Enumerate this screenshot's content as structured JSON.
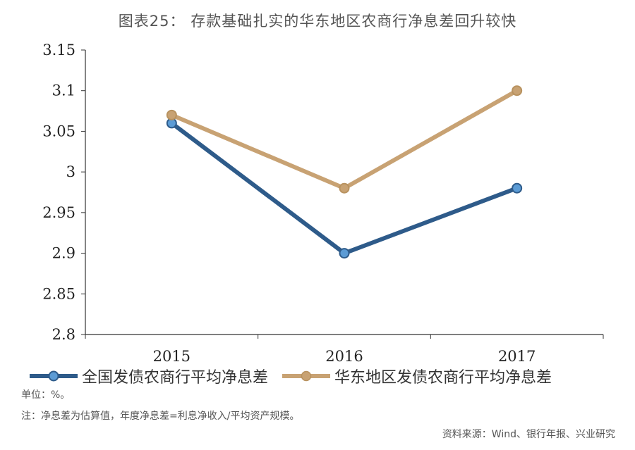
{
  "title": "图表25：  存款基础扎实的华东地区农商行净息差回升较快",
  "chart_data": {
    "type": "line",
    "categories": [
      "2015",
      "2016",
      "2017"
    ],
    "series": [
      {
        "name": "全国发债农商行平均净息差",
        "values": [
          3.06,
          2.9,
          2.98
        ],
        "color": "#2e5b8a"
      },
      {
        "name": "华东地区发债农商行平均净息差",
        "values": [
          3.07,
          2.98,
          3.1
        ],
        "color": "#c8a273"
      }
    ],
    "ylim": [
      2.8,
      3.15
    ],
    "yticks": [
      "2.8",
      "2.85",
      "2.9",
      "2.95",
      "3",
      "3.05",
      "3.1",
      "3.15"
    ],
    "grid": false,
    "legend_position": "bottom"
  },
  "notes": {
    "unit": "单位：%。",
    "note": "注：净息差为估算值，年度净息差=利息净收入/平均资产规模。",
    "source": "资料来源：Wind、银行年报、兴业研究"
  }
}
